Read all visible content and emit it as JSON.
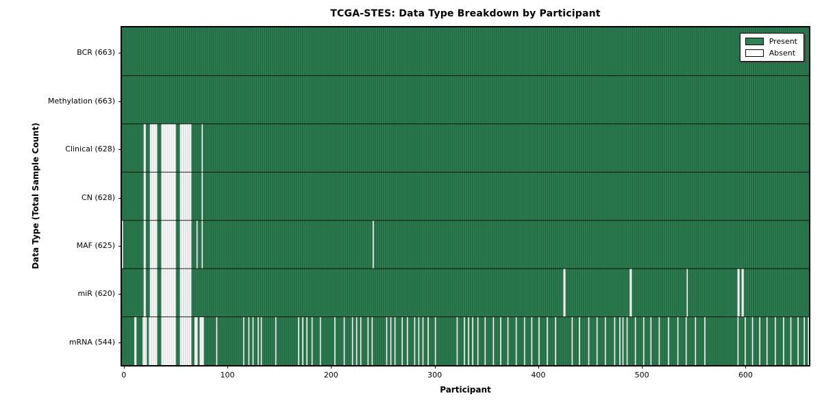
{
  "chart_data": {
    "type": "heatmap",
    "title": "TCGA-STES: Data Type Breakdown by Participant",
    "xlabel": "Participant",
    "ylabel": "Data Type (Total Sample Count)",
    "x_ticks": [
      0,
      100,
      200,
      300,
      400,
      500,
      600
    ],
    "n_participants": 663,
    "xlim": [
      0,
      663
    ],
    "grid": false,
    "legend_position": "upper right",
    "legend": {
      "present_label": "Present",
      "absent_label": "Absent"
    },
    "colors": {
      "present": "#2e8455",
      "absent": "#ffffff",
      "bar_edge": "rgba(0,0,0,0.42)",
      "absent_edge": "rgba(0,0,0,0.18)",
      "row_separator": "rgba(0,0,0,0.85)"
    },
    "rows": [
      {
        "label": "BCR (663)",
        "data_type": "BCR",
        "present_count": 663,
        "absent_participants": []
      },
      {
        "label": "Methylation (663)",
        "data_type": "Methylation",
        "present_count": 663,
        "absent_participants": []
      },
      {
        "label": "Clinical (628)",
        "data_type": "Clinical",
        "present_count": 628,
        "absent_participants": [
          21,
          22,
          27,
          28,
          29,
          30,
          31,
          32,
          33,
          38,
          39,
          40,
          41,
          42,
          43,
          44,
          45,
          46,
          47,
          48,
          49,
          50,
          51,
          56,
          57,
          58,
          59,
          60,
          61,
          62,
          63,
          64,
          65,
          66,
          77
        ]
      },
      {
        "label": "CN (628)",
        "data_type": "CN",
        "present_count": 628,
        "absent_participants": [
          21,
          22,
          27,
          28,
          29,
          30,
          31,
          32,
          33,
          38,
          39,
          40,
          41,
          42,
          43,
          44,
          45,
          46,
          47,
          48,
          49,
          50,
          51,
          56,
          57,
          58,
          59,
          60,
          61,
          62,
          63,
          64,
          65,
          66,
          77
        ]
      },
      {
        "label": "MAF (625)",
        "data_type": "MAF",
        "present_count": 625,
        "absent_participants": [
          0,
          21,
          22,
          27,
          28,
          29,
          30,
          31,
          32,
          33,
          38,
          39,
          40,
          41,
          42,
          43,
          44,
          45,
          46,
          47,
          48,
          49,
          50,
          51,
          56,
          57,
          58,
          59,
          60,
          61,
          62,
          63,
          64,
          65,
          66,
          72,
          77,
          242
        ]
      },
      {
        "label": "miR (620)",
        "data_type": "miR",
        "present_count": 620,
        "absent_participants": [
          21,
          22,
          27,
          28,
          29,
          30,
          31,
          32,
          33,
          38,
          39,
          40,
          41,
          42,
          43,
          44,
          45,
          46,
          47,
          48,
          49,
          50,
          51,
          56,
          57,
          58,
          59,
          60,
          61,
          62,
          63,
          64,
          65,
          66,
          426,
          427,
          490,
          491,
          545,
          594,
          595,
          598,
          599
        ]
      },
      {
        "label": "mRNA (544)",
        "data_type": "mRNA",
        "present_count": 544,
        "absent_participants": [
          12,
          13,
          20,
          21,
          22,
          23,
          26,
          27,
          28,
          29,
          30,
          31,
          32,
          33,
          38,
          39,
          40,
          41,
          42,
          43,
          44,
          45,
          46,
          47,
          48,
          49,
          50,
          51,
          56,
          57,
          58,
          59,
          60,
          61,
          62,
          63,
          64,
          65,
          66,
          70,
          71,
          72,
          75,
          76,
          77,
          78,
          91,
          117,
          122,
          126,
          131,
          134,
          148,
          170,
          174,
          178,
          183,
          191,
          205,
          214,
          222,
          226,
          230,
          237,
          241,
          255,
          259,
          263,
          270,
          275,
          282,
          286,
          290,
          295,
          302,
          323,
          330,
          334,
          338,
          343,
          350,
          358,
          365,
          372,
          380,
          388,
          395,
          402,
          410,
          418,
          434,
          441,
          450,
          458,
          466,
          475,
          480,
          483,
          487,
          495,
          503,
          510,
          518,
          527,
          536,
          544,
          553,
          562,
          594,
          601,
          608,
          615,
          622,
          630,
          638,
          645,
          652,
          658,
          662
        ]
      }
    ]
  }
}
